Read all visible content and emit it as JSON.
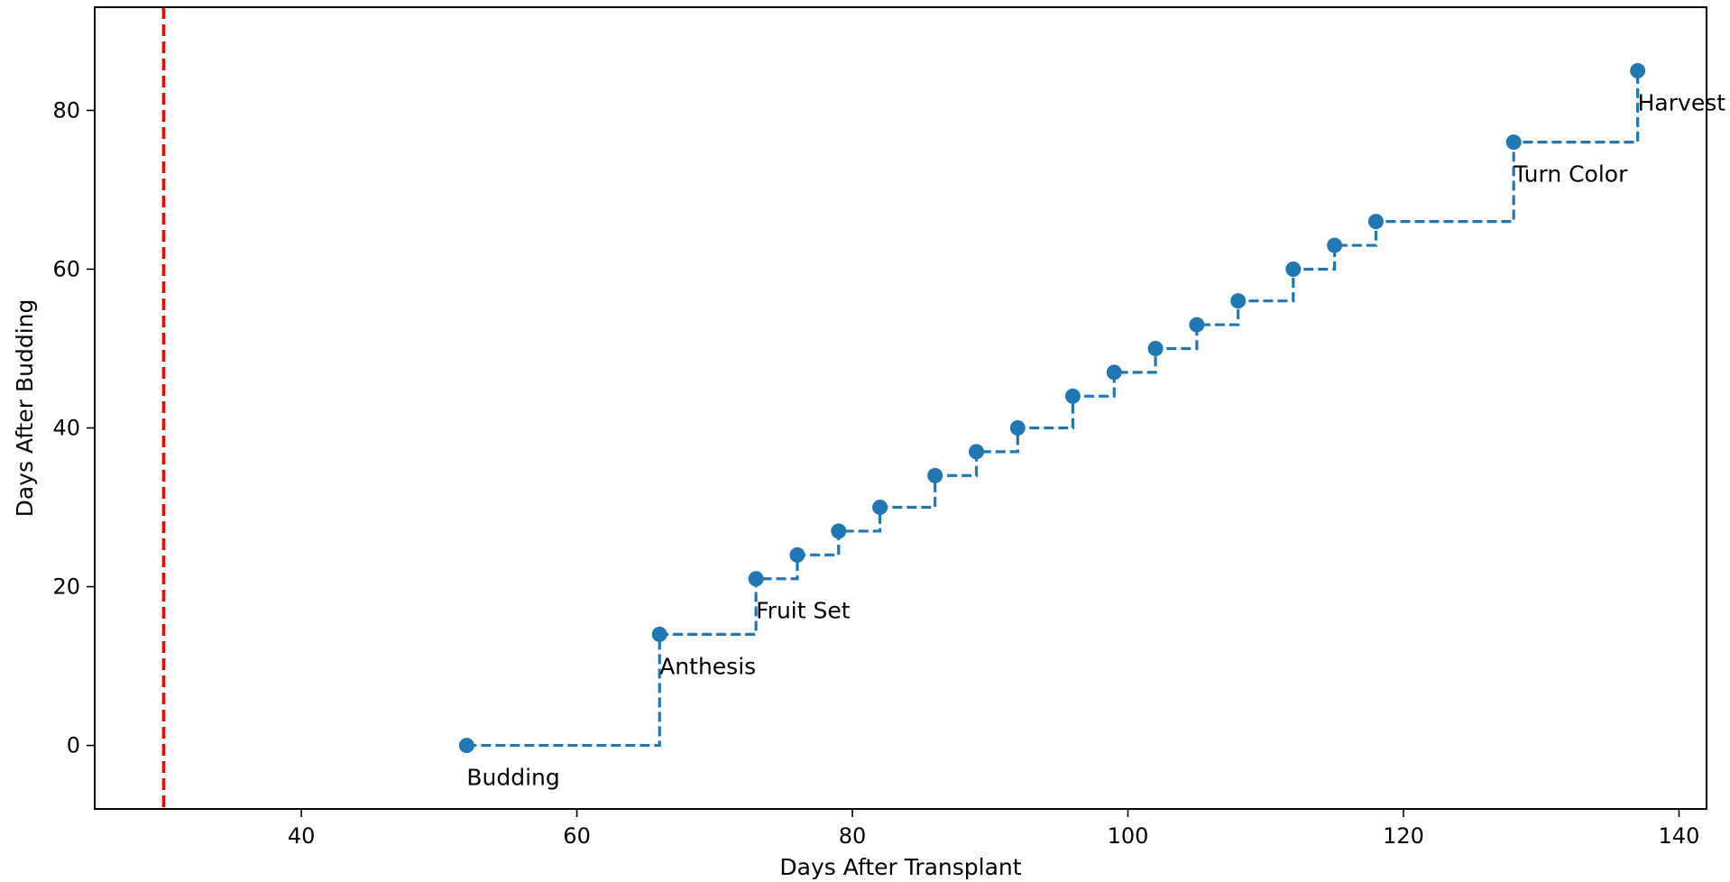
{
  "chart_data": {
    "type": "line",
    "step": "post",
    "xlabel": "Days After Transplant",
    "ylabel": "Days After Budding",
    "xlim": [
      25,
      142
    ],
    "ylim": [
      -8,
      93
    ],
    "x_ticks": [
      40,
      60,
      80,
      100,
      120,
      140
    ],
    "y_ticks": [
      0,
      20,
      40,
      60,
      80
    ],
    "grid": false,
    "line_color": "#1f77b4",
    "line_style": "dashed",
    "reference_line": {
      "x": 30,
      "color": "#ff0000",
      "style": "dashed"
    },
    "series": [
      {
        "x": [
          52,
          66,
          73,
          76,
          79,
          82,
          86,
          89,
          92,
          96,
          99,
          102,
          105,
          108,
          112,
          115,
          118,
          128,
          137
        ],
        "y": [
          0,
          14,
          21,
          24,
          27,
          30,
          34,
          37,
          40,
          44,
          47,
          50,
          53,
          56,
          60,
          63,
          66,
          76,
          85
        ]
      }
    ],
    "annotations": [
      {
        "text": "Budding",
        "x": 52,
        "y": 0
      },
      {
        "text": "Anthesis",
        "x": 66,
        "y": 14
      },
      {
        "text": "Fruit Set",
        "x": 73,
        "y": 21
      },
      {
        "text": "Turn Color",
        "x": 128,
        "y": 76
      },
      {
        "text": "Harvest",
        "x": 137,
        "y": 85
      }
    ]
  }
}
